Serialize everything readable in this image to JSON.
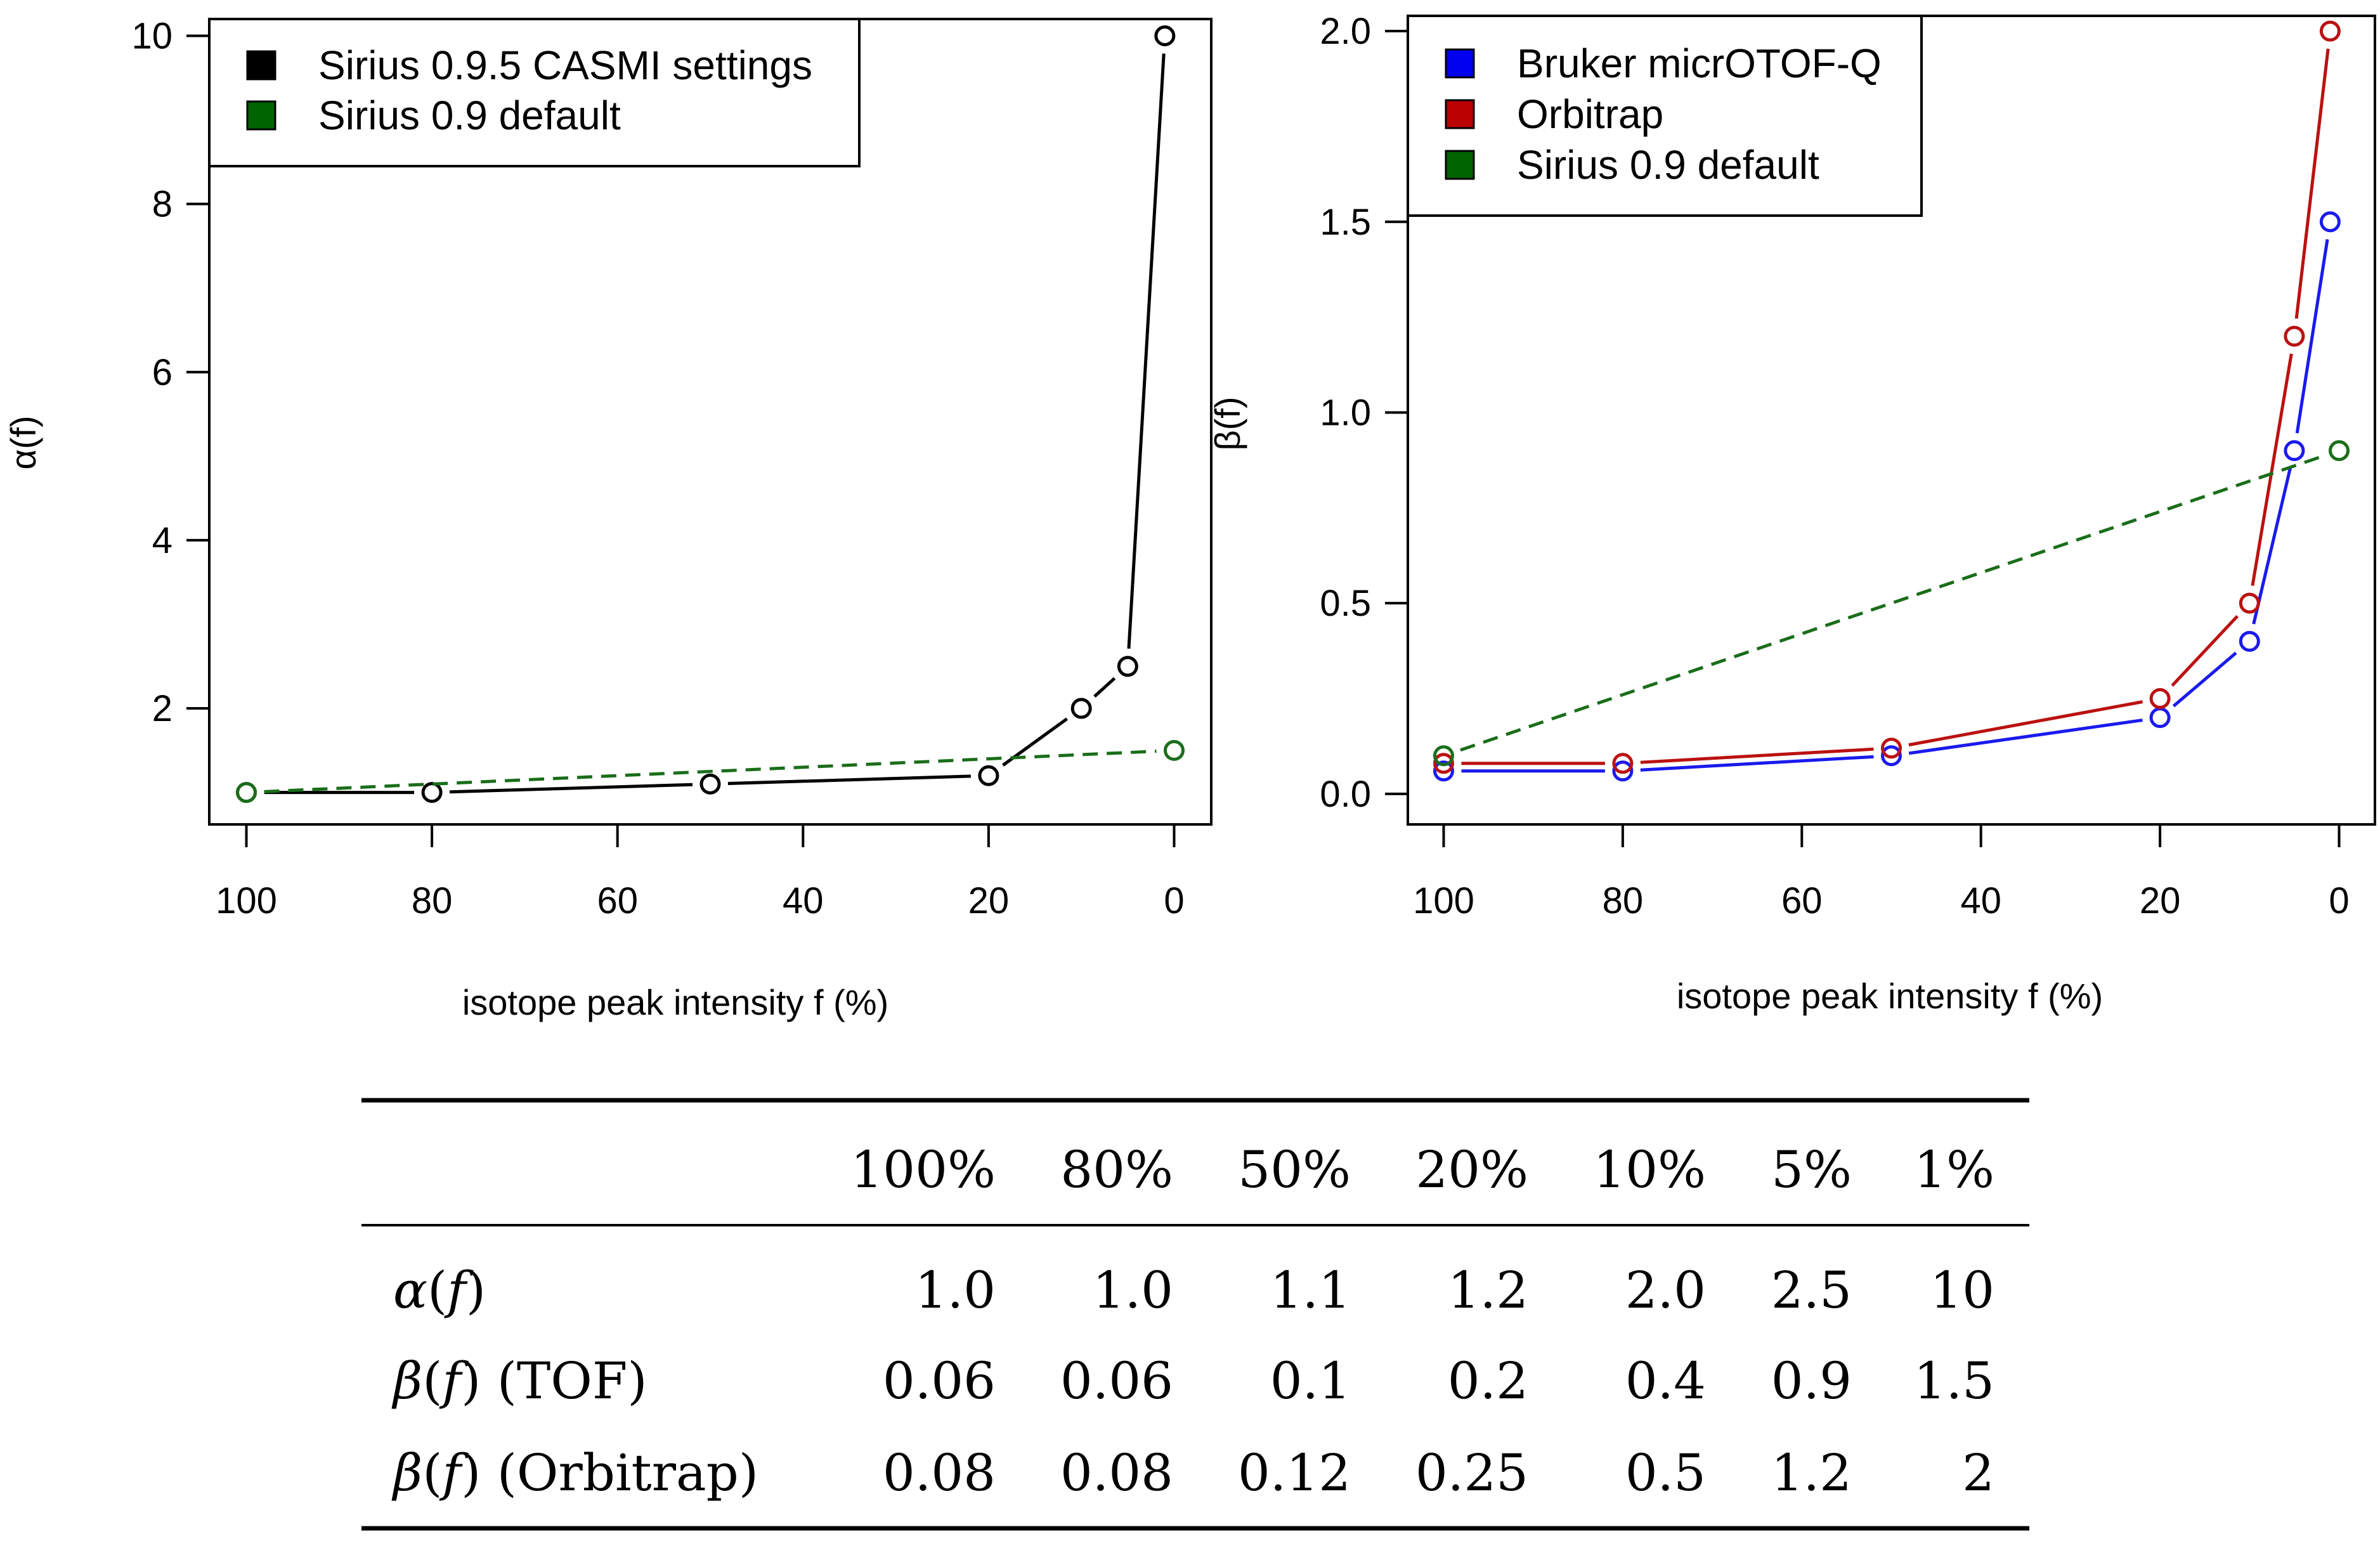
{
  "chart_data": [
    {
      "type": "line",
      "id": "alpha",
      "ylabel": "α(f)",
      "xlabel": "isotope peak intensity f (%)",
      "xlim": [
        104,
        -4
      ],
      "ylim": [
        0.62,
        10.2
      ],
      "xticks": [
        100,
        80,
        60,
        40,
        20,
        0
      ],
      "yticks": [
        2,
        4,
        6,
        8,
        10
      ],
      "legend": {
        "position": "top-left",
        "entries": [
          {
            "label": "Sirius 0.9.5 CASMI settings",
            "color": "#000000"
          },
          {
            "label": "Sirius 0.9 default",
            "color": "#006400"
          }
        ]
      },
      "series": [
        {
          "name": "Sirius 0.9.5 CASMI settings",
          "color": "#000000",
          "dashed": false,
          "x": [
            100,
            80,
            50,
            20,
            10,
            5,
            1
          ],
          "y": [
            1.0,
            1.0,
            1.1,
            1.2,
            2.0,
            2.5,
            10
          ]
        },
        {
          "name": "Sirius 0.9 default",
          "color": "#1a6e1a",
          "dashed": true,
          "x": [
            100,
            0
          ],
          "y": [
            1.0,
            1.5
          ]
        }
      ]
    },
    {
      "type": "line",
      "id": "beta",
      "ylabel": "β(f)",
      "xlabel": "isotope peak intensity f (%)",
      "xlim": [
        104,
        -4
      ],
      "ylim": [
        -0.08,
        2.04
      ],
      "xticks": [
        100,
        80,
        60,
        40,
        20,
        0
      ],
      "yticks": [
        0.0,
        0.5,
        1.0,
        1.5,
        2.0
      ],
      "yticklabels": [
        "0.0",
        "0.5",
        "1.0",
        "1.5",
        "2.0"
      ],
      "legend": {
        "position": "top-left",
        "entries": [
          {
            "label": "Bruker micrOTOF-Q",
            "color": "#0000ee"
          },
          {
            "label": "Orbitrap",
            "color": "#bb0000"
          },
          {
            "label": "Sirius 0.9 default",
            "color": "#006400"
          }
        ]
      },
      "series": [
        {
          "name": "Bruker micrOTOF-Q",
          "color": "#1a1aee",
          "dashed": false,
          "x": [
            100,
            80,
            50,
            20,
            10,
            5,
            1
          ],
          "y": [
            0.06,
            0.06,
            0.1,
            0.2,
            0.4,
            0.9,
            1.5
          ]
        },
        {
          "name": "Orbitrap",
          "color": "#bb1111",
          "dashed": false,
          "x": [
            100,
            80,
            50,
            20,
            10,
            5,
            1
          ],
          "y": [
            0.08,
            0.08,
            0.12,
            0.25,
            0.5,
            1.2,
            2
          ]
        },
        {
          "name": "Sirius 0.9 default",
          "color": "#1a6e1a",
          "dashed": true,
          "x": [
            100,
            0
          ],
          "y": [
            0.1,
            0.9
          ]
        }
      ]
    },
    {
      "type": "table",
      "id": "values-table",
      "header": [
        "",
        "100%",
        "80%",
        "50%",
        "20%",
        "10%",
        "5%",
        "1%"
      ],
      "rows": [
        {
          "label": "α(f)",
          "label_sym": "α",
          "label_suffix": "",
          "values": [
            "1.0",
            "1.0",
            "1.1",
            "1.2",
            "2.0",
            "2.5",
            "10"
          ]
        },
        {
          "label": "β(f) (TOF)",
          "label_sym": "β",
          "label_suffix": " (TOF)",
          "values": [
            "0.06",
            "0.06",
            "0.1",
            "0.2",
            "0.4",
            "0.9",
            "1.5"
          ]
        },
        {
          "label": "β(f) (Orbitrap)",
          "label_sym": "β",
          "label_suffix": " (Orbitrap)",
          "values": [
            "0.08",
            "0.08",
            "0.12",
            "0.25",
            "0.5",
            "1.2",
            "2"
          ]
        }
      ]
    }
  ]
}
